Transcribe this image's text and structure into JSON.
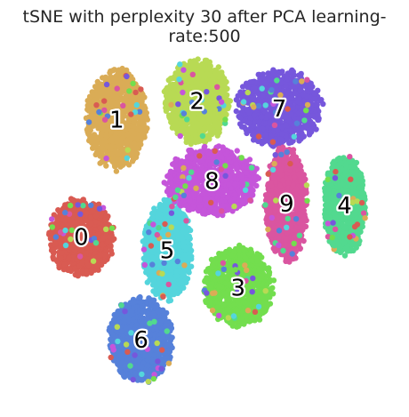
{
  "chart_data": {
    "type": "scatter",
    "title": "tSNE with perplexity 30 after PCA learning-rate:500",
    "xlabel": "",
    "ylabel": "",
    "xlim": [
      -100,
      100
    ],
    "ylim": [
      -100,
      100
    ],
    "grid": false,
    "legend": "none",
    "clusters": [
      {
        "label": "0",
        "color": "#d95b52",
        "cx": -66,
        "cy": -7,
        "rx": 17,
        "ry": 20
      },
      {
        "label": "1",
        "color": "#daac56",
        "cx": -47,
        "cy": 56,
        "rx": 16,
        "ry": 26
      },
      {
        "label": "2",
        "color": "#b8da54",
        "cx": -4,
        "cy": 66,
        "rx": 17,
        "ry": 22
      },
      {
        "label": "3",
        "color": "#73de4e",
        "cx": 18,
        "cy": -34,
        "rx": 18,
        "ry": 21
      },
      {
        "label": "4",
        "color": "#52d98f",
        "cx": 75,
        "cy": 10,
        "rx": 11,
        "ry": 26
      },
      {
        "label": "5",
        "color": "#54d5dc",
        "cx": -20,
        "cy": -14,
        "rx": 13,
        "ry": 26
      },
      {
        "label": "6",
        "color": "#5681da",
        "cx": -34,
        "cy": -62,
        "rx": 17,
        "ry": 22
      },
      {
        "label": "7",
        "color": "#7657dc",
        "cx": 40,
        "cy": 62,
        "rx": 22,
        "ry": 20
      },
      {
        "label": "8",
        "color": "#c555da",
        "cx": 4,
        "cy": 23,
        "rx": 24,
        "ry": 18
      },
      {
        "label": "9",
        "color": "#da55a0",
        "cx": 44,
        "cy": 11,
        "rx": 11,
        "ry": 30
      }
    ]
  }
}
